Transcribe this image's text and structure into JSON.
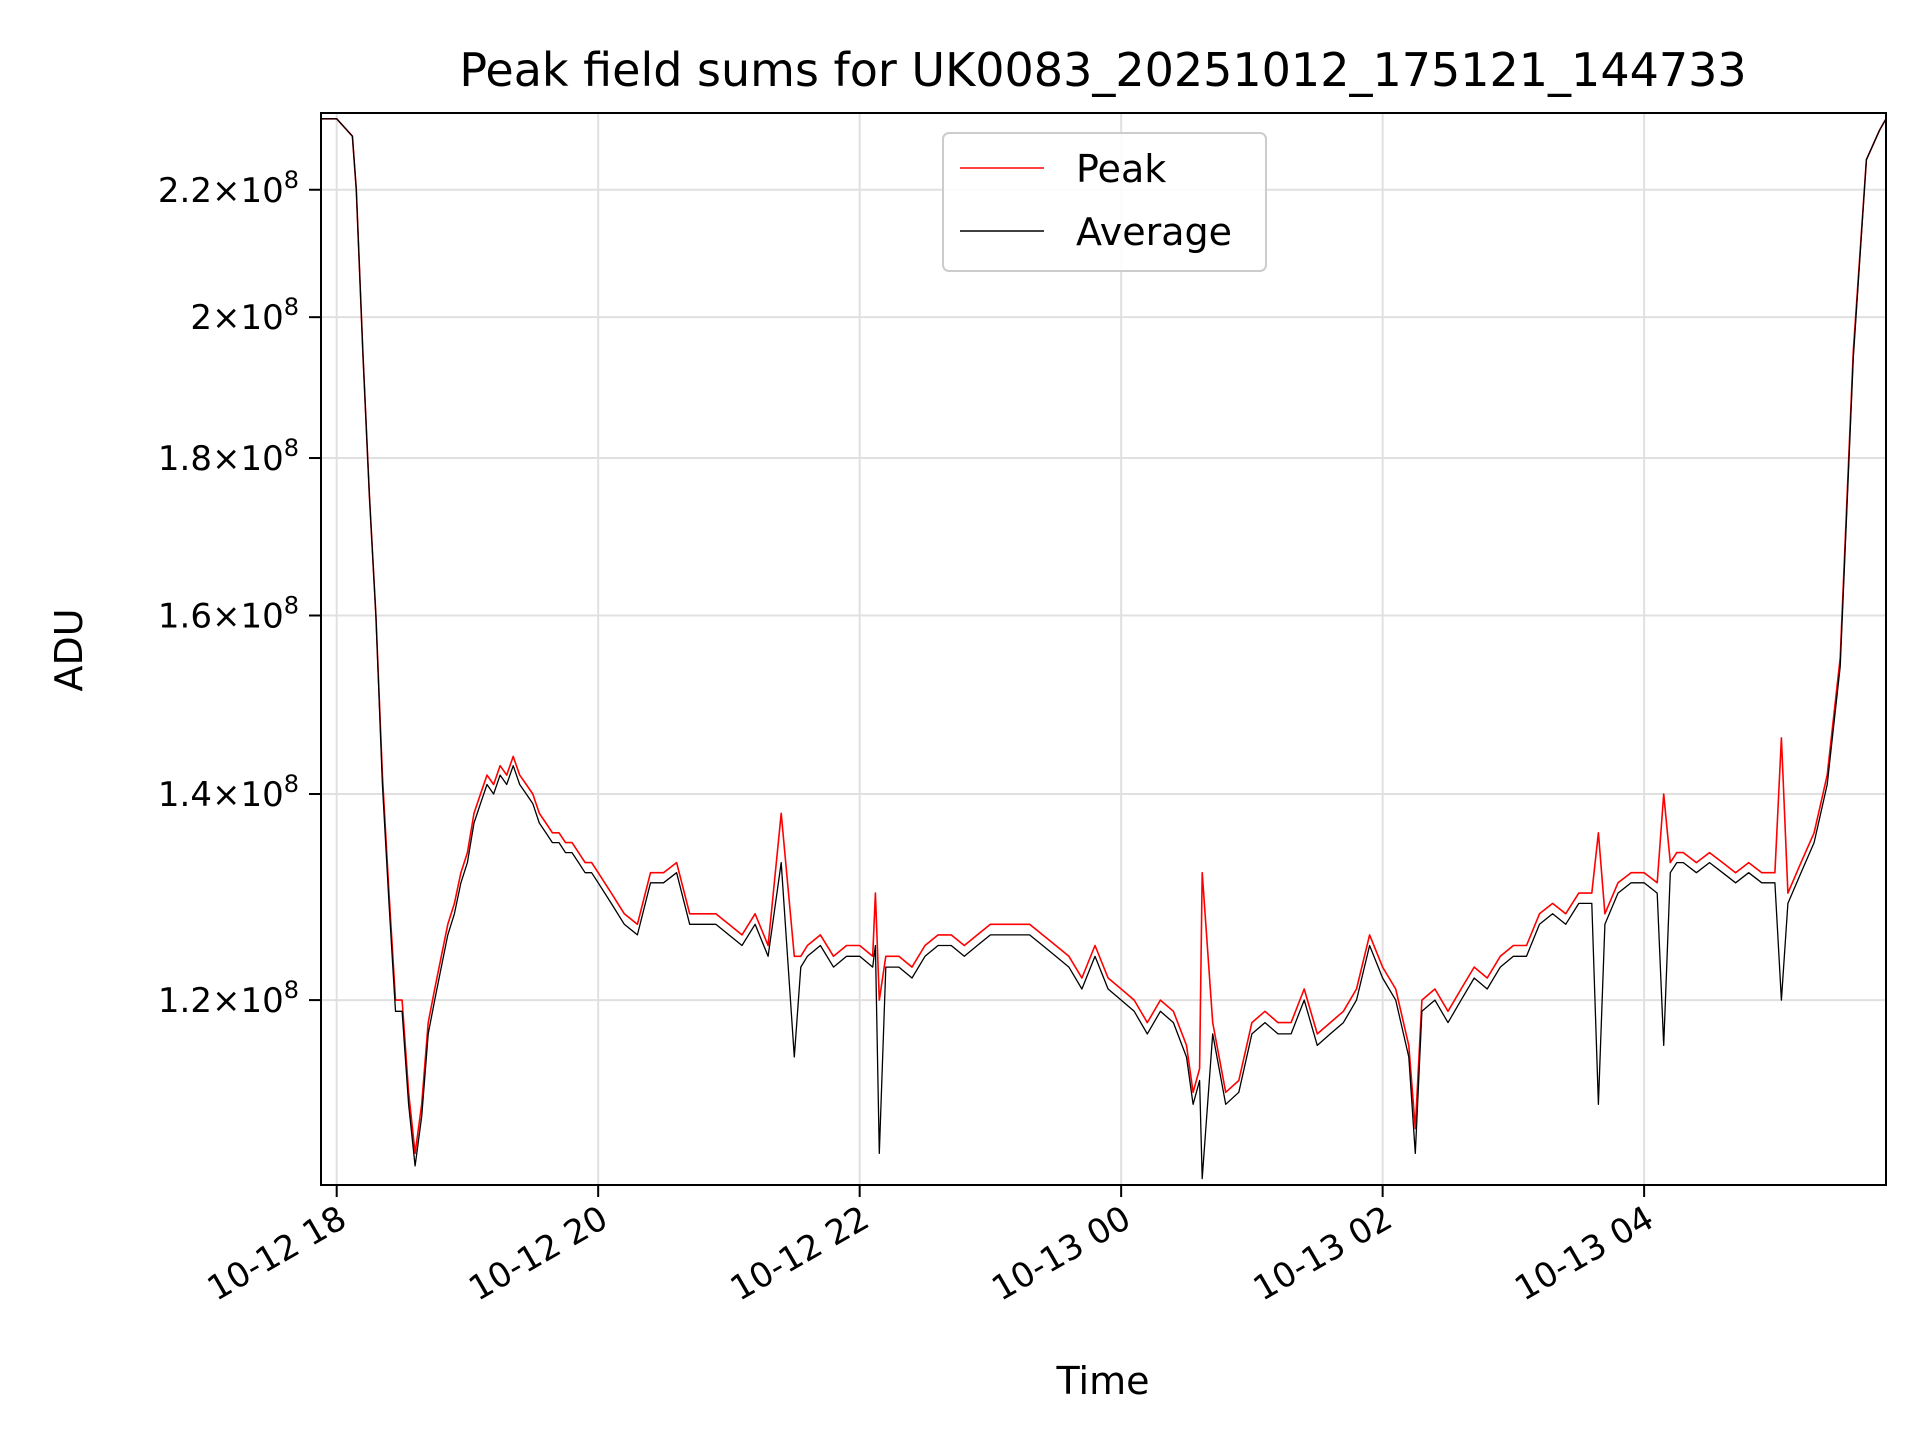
{
  "chart_data": {
    "type": "line",
    "title": "Peak field sums for UK0083_20251012_175121_144733",
    "xlabel": "Time",
    "ylabel": "ADU",
    "x_unit": "hours since 10-12 18:00",
    "xlim": [
      -0.12,
      11.85
    ],
    "ylim": [
      104500000.0,
      233000000.0
    ],
    "yscale": "log",
    "grid": true,
    "legend_position": "top-center",
    "x_ticks": [
      {
        "value": 0,
        "label": "10-12 18"
      },
      {
        "value": 2,
        "label": "10-12 20"
      },
      {
        "value": 4,
        "label": "10-12 22"
      },
      {
        "value": 6,
        "label": "10-13 00"
      },
      {
        "value": 8,
        "label": "10-13 02"
      },
      {
        "value": 10,
        "label": "10-13 04"
      }
    ],
    "y_ticks": [
      {
        "value": 120000000.0,
        "mantissa": "1.2",
        "base": "10",
        "exp": "8"
      },
      {
        "value": 140000000.0,
        "mantissa": "1.4",
        "base": "10",
        "exp": "8"
      },
      {
        "value": 160000000.0,
        "mantissa": "1.6",
        "base": "10",
        "exp": "8"
      },
      {
        "value": 180000000.0,
        "mantissa": "1.8",
        "base": "10",
        "exp": "8"
      },
      {
        "value": 200000000.0,
        "mantissa": "2",
        "base": "10",
        "exp": "8"
      },
      {
        "value": 220000000.0,
        "mantissa": "2.2",
        "base": "10",
        "exp": "8"
      }
    ],
    "series": [
      {
        "name": "Peak",
        "color": "#ff0000",
        "x": [
          -0.12,
          0.0,
          0.08,
          0.12,
          0.15,
          0.2,
          0.25,
          0.3,
          0.35,
          0.4,
          0.45,
          0.5,
          0.55,
          0.6,
          0.65,
          0.7,
          0.75,
          0.8,
          0.85,
          0.9,
          0.95,
          1.0,
          1.05,
          1.1,
          1.15,
          1.2,
          1.25,
          1.3,
          1.35,
          1.4,
          1.45,
          1.5,
          1.55,
          1.6,
          1.65,
          1.7,
          1.75,
          1.8,
          1.85,
          1.9,
          1.95,
          2.0,
          2.1,
          2.2,
          2.3,
          2.4,
          2.5,
          2.6,
          2.7,
          2.8,
          2.9,
          3.0,
          3.1,
          3.2,
          3.3,
          3.4,
          3.5,
          3.55,
          3.6,
          3.7,
          3.8,
          3.9,
          4.0,
          4.1,
          4.12,
          4.15,
          4.2,
          4.3,
          4.4,
          4.5,
          4.6,
          4.7,
          4.8,
          4.9,
          5.0,
          5.1,
          5.2,
          5.3,
          5.4,
          5.5,
          5.6,
          5.7,
          5.8,
          5.9,
          6.0,
          6.1,
          6.2,
          6.3,
          6.4,
          6.5,
          6.55,
          6.6,
          6.62,
          6.7,
          6.8,
          6.9,
          7.0,
          7.1,
          7.2,
          7.3,
          7.4,
          7.5,
          7.6,
          7.7,
          7.8,
          7.9,
          8.0,
          8.1,
          8.2,
          8.25,
          8.3,
          8.4,
          8.5,
          8.6,
          8.7,
          8.8,
          8.9,
          9.0,
          9.1,
          9.2,
          9.3,
          9.4,
          9.5,
          9.6,
          9.65,
          9.7,
          9.8,
          9.9,
          10.0,
          10.1,
          10.15,
          10.2,
          10.25,
          10.3,
          10.4,
          10.5,
          10.6,
          10.7,
          10.8,
          10.9,
          11.0,
          11.05,
          11.1,
          11.2,
          11.3,
          11.4,
          11.5,
          11.6,
          11.7,
          11.8,
          11.85
        ],
        "values": [
          232000000.0,
          232000000.0,
          230000000.0,
          229000000.0,
          220000000.0,
          195000000.0,
          175000000.0,
          160000000.0,
          142000000.0,
          130000000.0,
          120000000.0,
          120000000.0,
          112000000.0,
          107000000.0,
          111000000.0,
          118000000.0,
          121000000.0,
          124000000.0,
          127000000.0,
          129000000.0,
          132000000.0,
          134000000.0,
          138000000.0,
          140000000.0,
          142000000.0,
          141000000.0,
          143000000.0,
          142000000.0,
          144000000.0,
          142000000.0,
          141000000.0,
          140000000.0,
          138000000.0,
          137000000.0,
          136000000.0,
          136000000.0,
          135000000.0,
          135000000.0,
          134000000.0,
          133000000.0,
          133000000.0,
          132000000.0,
          130000000.0,
          128000000.0,
          127000000.0,
          132000000.0,
          132000000.0,
          133000000.0,
          128000000.0,
          128000000.0,
          128000000.0,
          127000000.0,
          126000000.0,
          128000000.0,
          125000000.0,
          138000000.0,
          124000000.0,
          124000000.0,
          125000000.0,
          126000000.0,
          124000000.0,
          125000000.0,
          125000000.0,
          124000000.0,
          130000000.0,
          120000000.0,
          124000000.0,
          124000000.0,
          123000000.0,
          125000000.0,
          126000000.0,
          126000000.0,
          125000000.0,
          126000000.0,
          127000000.0,
          127000000.0,
          127000000.0,
          127000000.0,
          126000000.0,
          125000000.0,
          124000000.0,
          122000000.0,
          125000000.0,
          122000000.0,
          121000000.0,
          120000000.0,
          118000000.0,
          120000000.0,
          119000000.0,
          116000000.0,
          112000000.0,
          114000000.0,
          132000000.0,
          118000000.0,
          112000000.0,
          113000000.0,
          118000000.0,
          119000000.0,
          118000000.0,
          118000000.0,
          121000000.0,
          117000000.0,
          118000000.0,
          119000000.0,
          121000000.0,
          126000000.0,
          123000000.0,
          121000000.0,
          116000000.0,
          109000000.0,
          120000000.0,
          121000000.0,
          119000000.0,
          121000000.0,
          123000000.0,
          122000000.0,
          124000000.0,
          125000000.0,
          125000000.0,
          128000000.0,
          129000000.0,
          128000000.0,
          130000000.0,
          130000000.0,
          136000000.0,
          128000000.0,
          131000000.0,
          132000000.0,
          132000000.0,
          131000000.0,
          140000000.0,
          133000000.0,
          134000000.0,
          134000000.0,
          133000000.0,
          134000000.0,
          133000000.0,
          132000000.0,
          133000000.0,
          132000000.0,
          132000000.0,
          146000000.0,
          130000000.0,
          133000000.0,
          136000000.0,
          142000000.0,
          155000000.0,
          195000000.0,
          225000000.0,
          230000000.0,
          232000000.0
        ]
      },
      {
        "name": "Average",
        "color": "#000000",
        "x": [
          -0.12,
          0.0,
          0.08,
          0.12,
          0.15,
          0.2,
          0.25,
          0.3,
          0.35,
          0.4,
          0.45,
          0.5,
          0.55,
          0.6,
          0.65,
          0.7,
          0.75,
          0.8,
          0.85,
          0.9,
          0.95,
          1.0,
          1.05,
          1.1,
          1.15,
          1.2,
          1.25,
          1.3,
          1.35,
          1.4,
          1.45,
          1.5,
          1.55,
          1.6,
          1.65,
          1.7,
          1.75,
          1.8,
          1.85,
          1.9,
          1.95,
          2.0,
          2.1,
          2.2,
          2.3,
          2.4,
          2.5,
          2.6,
          2.7,
          2.8,
          2.9,
          3.0,
          3.1,
          3.2,
          3.3,
          3.4,
          3.5,
          3.55,
          3.6,
          3.7,
          3.8,
          3.9,
          4.0,
          4.1,
          4.12,
          4.15,
          4.2,
          4.3,
          4.4,
          4.5,
          4.6,
          4.7,
          4.8,
          4.9,
          5.0,
          5.1,
          5.2,
          5.3,
          5.4,
          5.5,
          5.6,
          5.7,
          5.8,
          5.9,
          6.0,
          6.1,
          6.2,
          6.3,
          6.4,
          6.5,
          6.55,
          6.6,
          6.62,
          6.7,
          6.8,
          6.9,
          7.0,
          7.1,
          7.2,
          7.3,
          7.4,
          7.5,
          7.6,
          7.7,
          7.8,
          7.9,
          8.0,
          8.1,
          8.2,
          8.25,
          8.3,
          8.4,
          8.5,
          8.6,
          8.7,
          8.8,
          8.9,
          9.0,
          9.1,
          9.2,
          9.3,
          9.4,
          9.5,
          9.6,
          9.65,
          9.7,
          9.8,
          9.9,
          10.0,
          10.1,
          10.15,
          10.2,
          10.25,
          10.3,
          10.4,
          10.5,
          10.6,
          10.7,
          10.8,
          10.9,
          11.0,
          11.05,
          11.1,
          11.2,
          11.3,
          11.4,
          11.5,
          11.6,
          11.7,
          11.8,
          11.85
        ],
        "values": [
          232000000.0,
          232000000.0,
          230000000.0,
          229000000.0,
          220000000.0,
          195000000.0,
          175000000.0,
          160000000.0,
          141000000.0,
          129000000.0,
          119000000.0,
          119000000.0,
          111000000.0,
          106000000.0,
          110000000.0,
          117000000.0,
          120000000.0,
          123000000.0,
          126000000.0,
          128000000.0,
          131000000.0,
          133000000.0,
          137000000.0,
          139000000.0,
          141000000.0,
          140000000.0,
          142000000.0,
          141000000.0,
          143000000.0,
          141000000.0,
          140000000.0,
          139000000.0,
          137000000.0,
          136000000.0,
          135000000.0,
          135000000.0,
          134000000.0,
          134000000.0,
          133000000.0,
          132000000.0,
          132000000.0,
          131000000.0,
          129000000.0,
          127000000.0,
          126000000.0,
          131000000.0,
          131000000.0,
          132000000.0,
          127000000.0,
          127000000.0,
          127000000.0,
          126000000.0,
          125000000.0,
          127000000.0,
          124000000.0,
          133000000.0,
          115000000.0,
          123000000.0,
          124000000.0,
          125000000.0,
          123000000.0,
          124000000.0,
          124000000.0,
          123000000.0,
          125000000.0,
          107000000.0,
          123000000.0,
          123000000.0,
          122000000.0,
          124000000.0,
          125000000.0,
          125000000.0,
          124000000.0,
          125000000.0,
          126000000.0,
          126000000.0,
          126000000.0,
          126000000.0,
          125000000.0,
          124000000.0,
          123000000.0,
          121000000.0,
          124000000.0,
          121000000.0,
          120000000.0,
          119000000.0,
          117000000.0,
          119000000.0,
          118000000.0,
          115000000.0,
          111000000.0,
          113000000.0,
          105000000.0,
          117000000.0,
          111000000.0,
          112000000.0,
          117000000.0,
          118000000.0,
          117000000.0,
          117000000.0,
          120000000.0,
          116000000.0,
          117000000.0,
          118000000.0,
          120000000.0,
          125000000.0,
          122000000.0,
          120000000.0,
          115000000.0,
          107000000.0,
          119000000.0,
          120000000.0,
          118000000.0,
          120000000.0,
          122000000.0,
          121000000.0,
          123000000.0,
          124000000.0,
          124000000.0,
          127000000.0,
          128000000.0,
          127000000.0,
          129000000.0,
          129000000.0,
          111000000.0,
          127000000.0,
          130000000.0,
          131000000.0,
          131000000.0,
          130000000.0,
          116000000.0,
          132000000.0,
          133000000.0,
          133000000.0,
          132000000.0,
          133000000.0,
          132000000.0,
          131000000.0,
          132000000.0,
          131000000.0,
          131000000.0,
          120000000.0,
          129000000.0,
          132000000.0,
          135000000.0,
          141000000.0,
          154000000.0,
          194000000.0,
          225000000.0,
          230000000.0,
          232000000.0
        ]
      }
    ]
  }
}
